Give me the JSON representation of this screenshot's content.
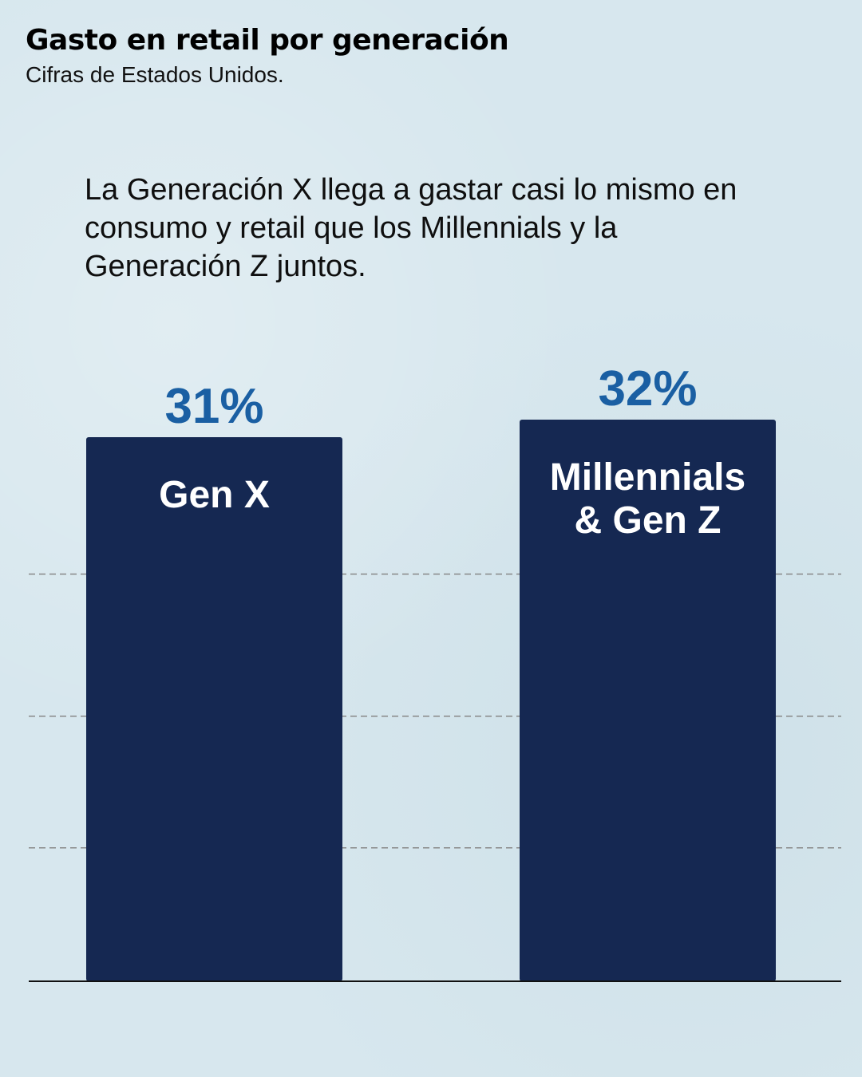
{
  "header": {
    "title": "Gasto en retail por generación",
    "subtitle": "Cifras de Estados Unidos."
  },
  "annotation": "La Generación X llega a gastar casi lo mismo en consumo y retail que los Millennials y la Generación Z juntos.",
  "colors": {
    "background": "#d7e7ee",
    "bar": "#152852",
    "value_label": "#1a5fa3",
    "bar_label": "#ffffff",
    "gridline": "#888888",
    "baseline": "#111111"
  },
  "chart_data": {
    "type": "bar",
    "categories": [
      "Gen X",
      "Millennials & Gen Z"
    ],
    "category_label_lines": [
      [
        "Gen X"
      ],
      [
        "Millennials",
        "& Gen Z"
      ]
    ],
    "values": [
      31,
      32
    ],
    "value_labels": [
      "31%",
      "32%"
    ],
    "ylim": [
      0,
      32
    ],
    "gridlines": [
      7.6,
      15.1,
      23.2
    ],
    "grid": true,
    "legend": "none"
  }
}
